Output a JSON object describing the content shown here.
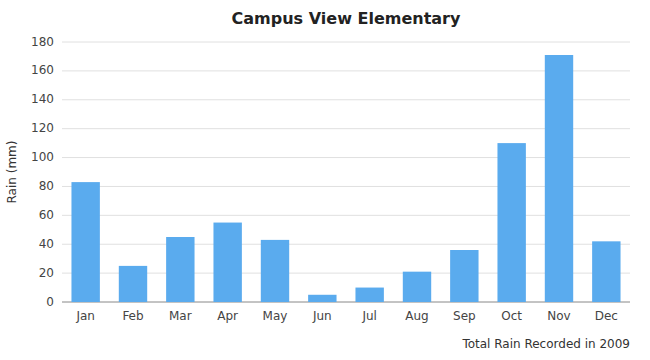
{
  "chart_data": {
    "type": "bar",
    "title": "Campus View Elementary",
    "xlabel": "Total Rain Recorded in 2009",
    "ylabel": "Rain (mm)",
    "categories": [
      "Jan",
      "Feb",
      "Mar",
      "Apr",
      "May",
      "Jun",
      "Jul",
      "Aug",
      "Sep",
      "Oct",
      "Nov",
      "Dec"
    ],
    "values": [
      83,
      25,
      45,
      55,
      43,
      5,
      10,
      21,
      36,
      110,
      171,
      42
    ],
    "color": "#5aabee",
    "ylim": [
      0,
      180
    ],
    "yticks": [
      0,
      20,
      40,
      60,
      80,
      100,
      120,
      140,
      160,
      180
    ],
    "grid": true
  }
}
